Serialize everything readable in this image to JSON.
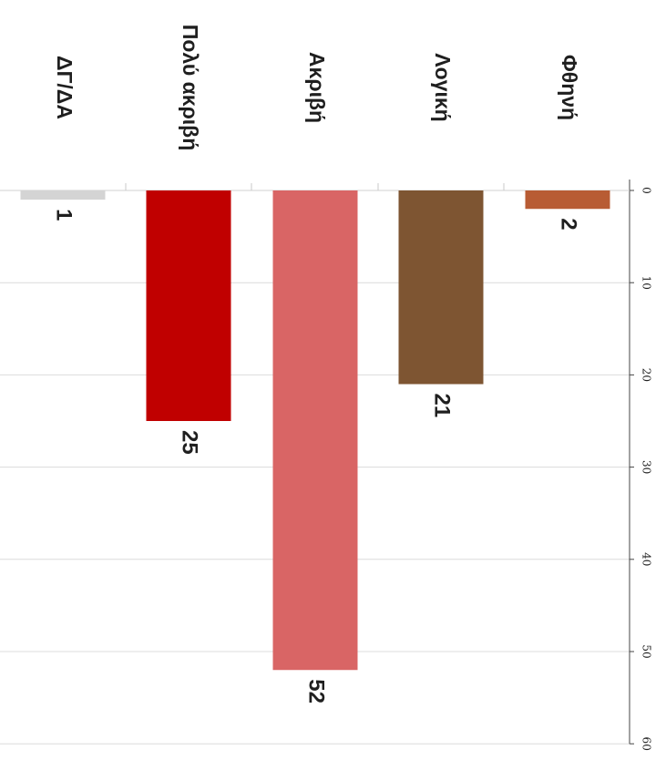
{
  "chart_data": {
    "type": "bar",
    "orientation": "rotated-90-clockwise",
    "categories": [
      "Φθηνή",
      "Λογική",
      "Ακριβή",
      "Πολύ ακριβή",
      "ΔΓ/ΔΑ"
    ],
    "values": [
      2,
      21,
      52,
      25,
      1
    ],
    "value_labels": [
      "2",
      "21",
      "52",
      "25",
      "1"
    ],
    "colors": [
      "#b85c34",
      "#7e5532",
      "#d96565",
      "#c00000",
      "#d4d4d4"
    ],
    "ylim": [
      0,
      60
    ],
    "ticks": [
      "0",
      "10",
      "20",
      "30",
      "40",
      "50",
      "60"
    ],
    "grid": true,
    "title": "",
    "xlabel": "",
    "ylabel": ""
  }
}
